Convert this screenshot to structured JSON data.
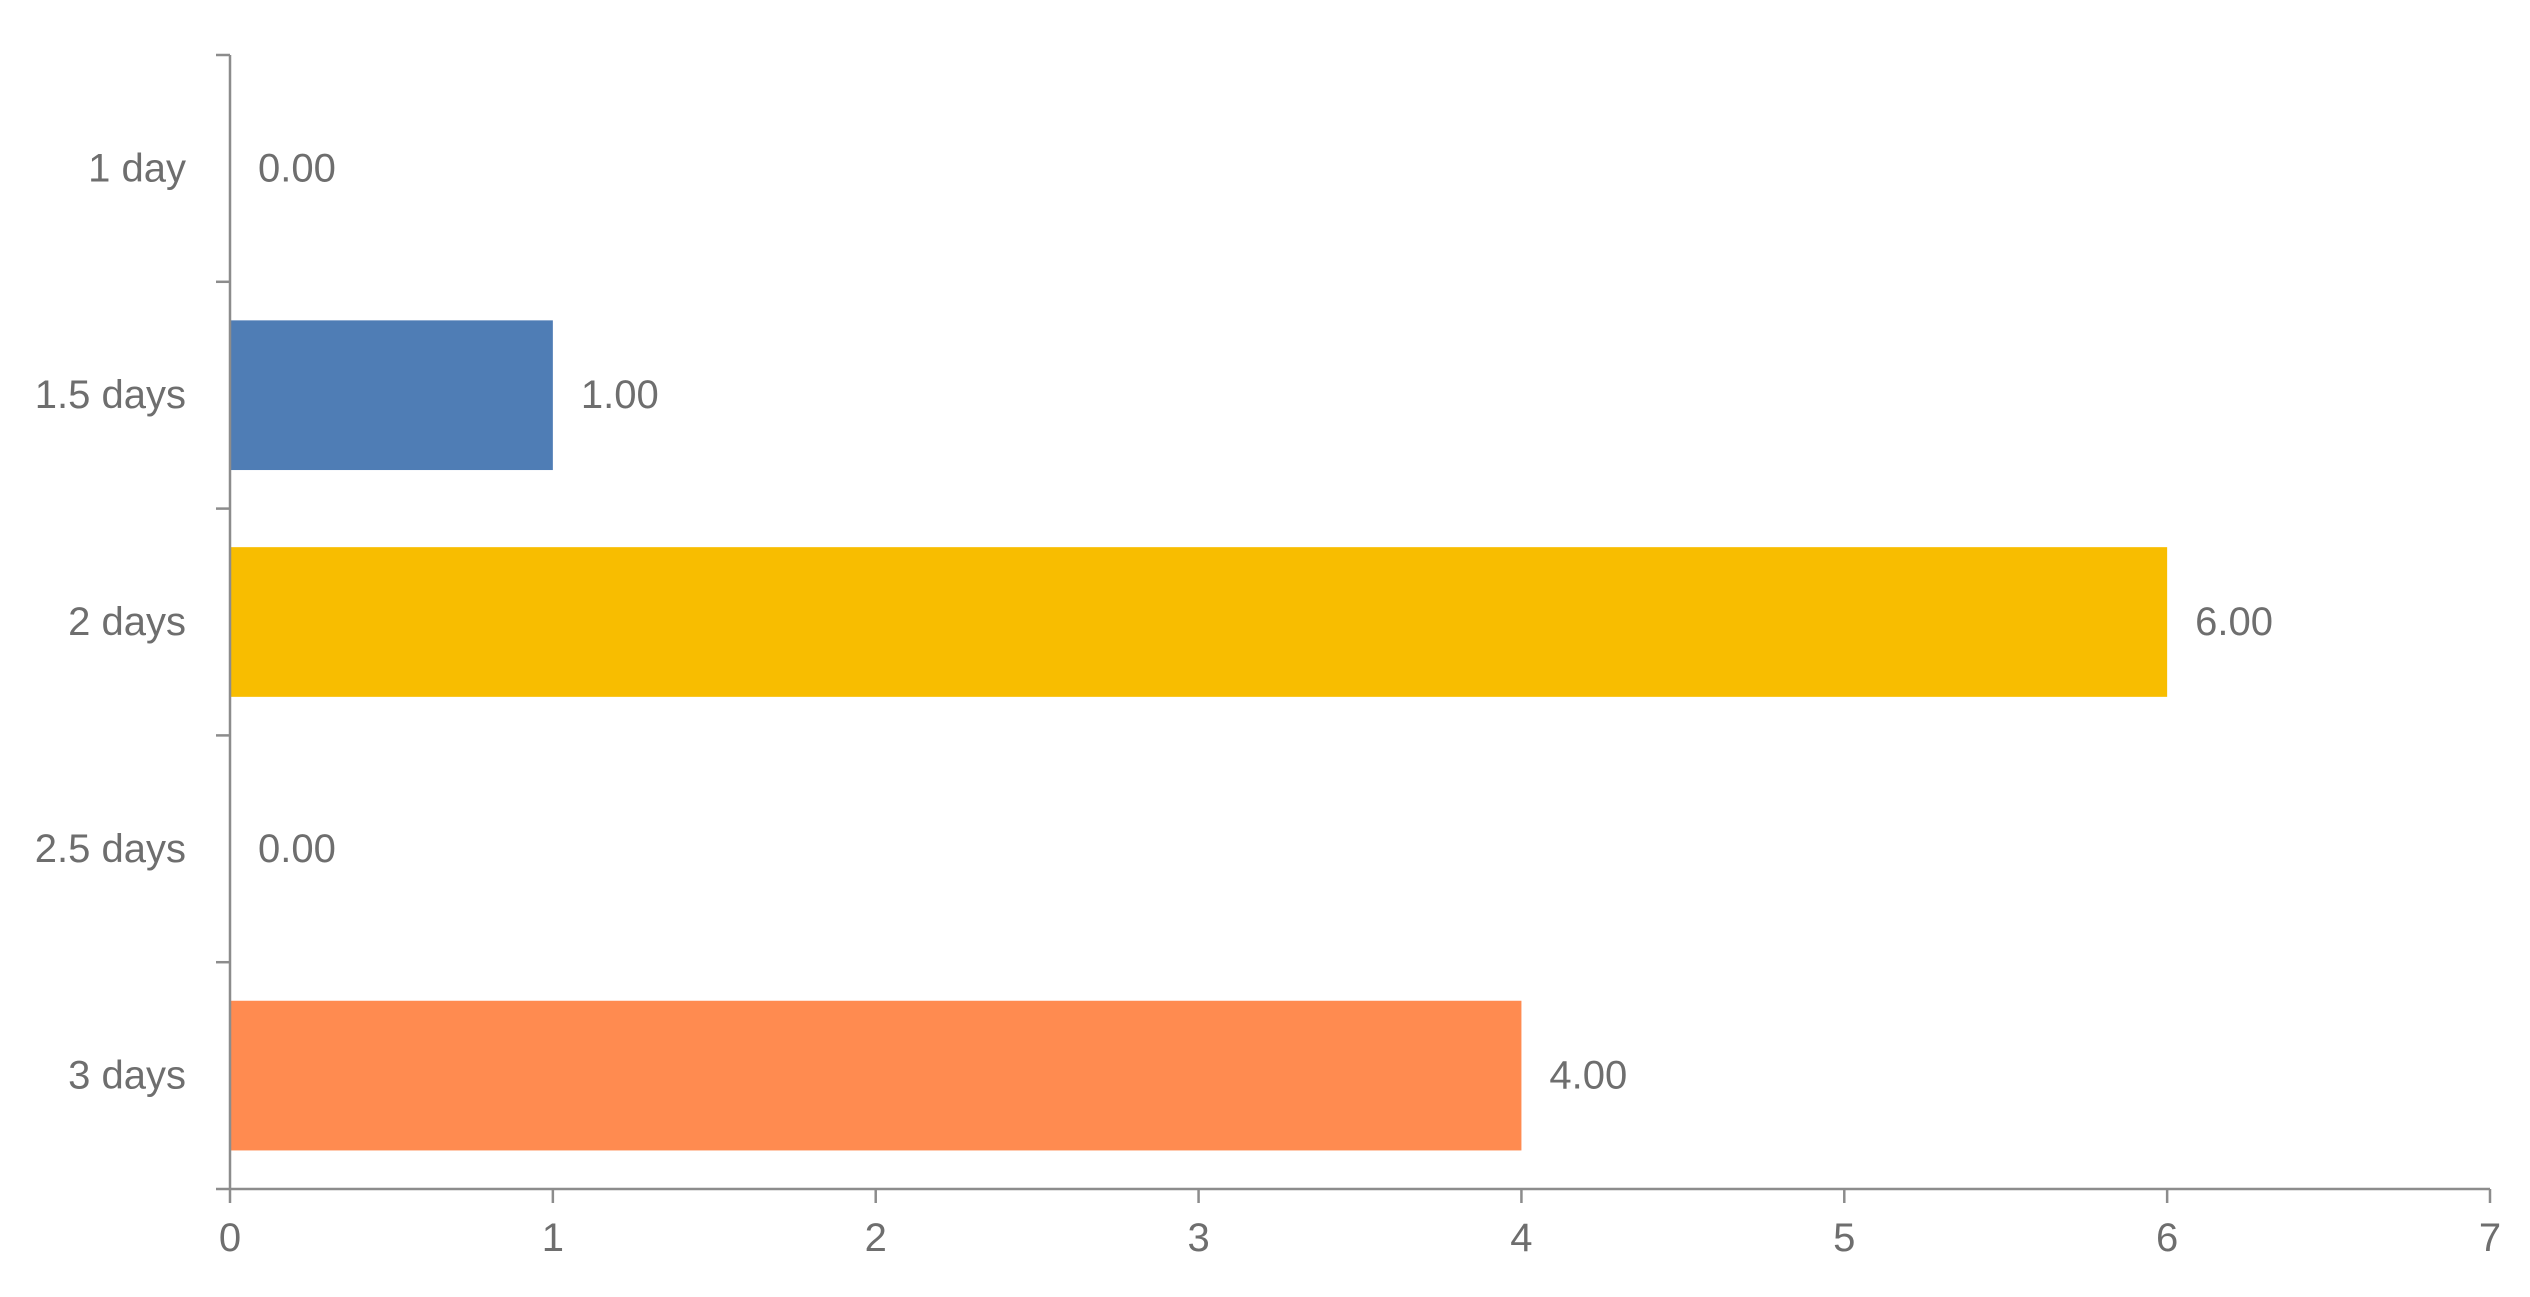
{
  "chart_data": {
    "type": "bar",
    "orientation": "horizontal",
    "categories": [
      "1 day",
      "1.5 days",
      "2 days",
      "2.5 days",
      "3 days"
    ],
    "values": [
      0,
      1,
      6,
      0,
      4
    ],
    "data_labels": [
      "0.00",
      "1.00",
      "6.00",
      "0.00",
      "4.00"
    ],
    "colors": [
      "#4f7db5",
      "#4f7db5",
      "#f8bd00",
      "#4f7db5",
      "#ff8b50"
    ],
    "xlim": [
      0,
      7
    ],
    "xticks": [
      "0",
      "1",
      "2",
      "3",
      "4",
      "5",
      "6",
      "7"
    ],
    "title": "",
    "xlabel": "",
    "ylabel": "",
    "grid": false,
    "legend": "none"
  }
}
